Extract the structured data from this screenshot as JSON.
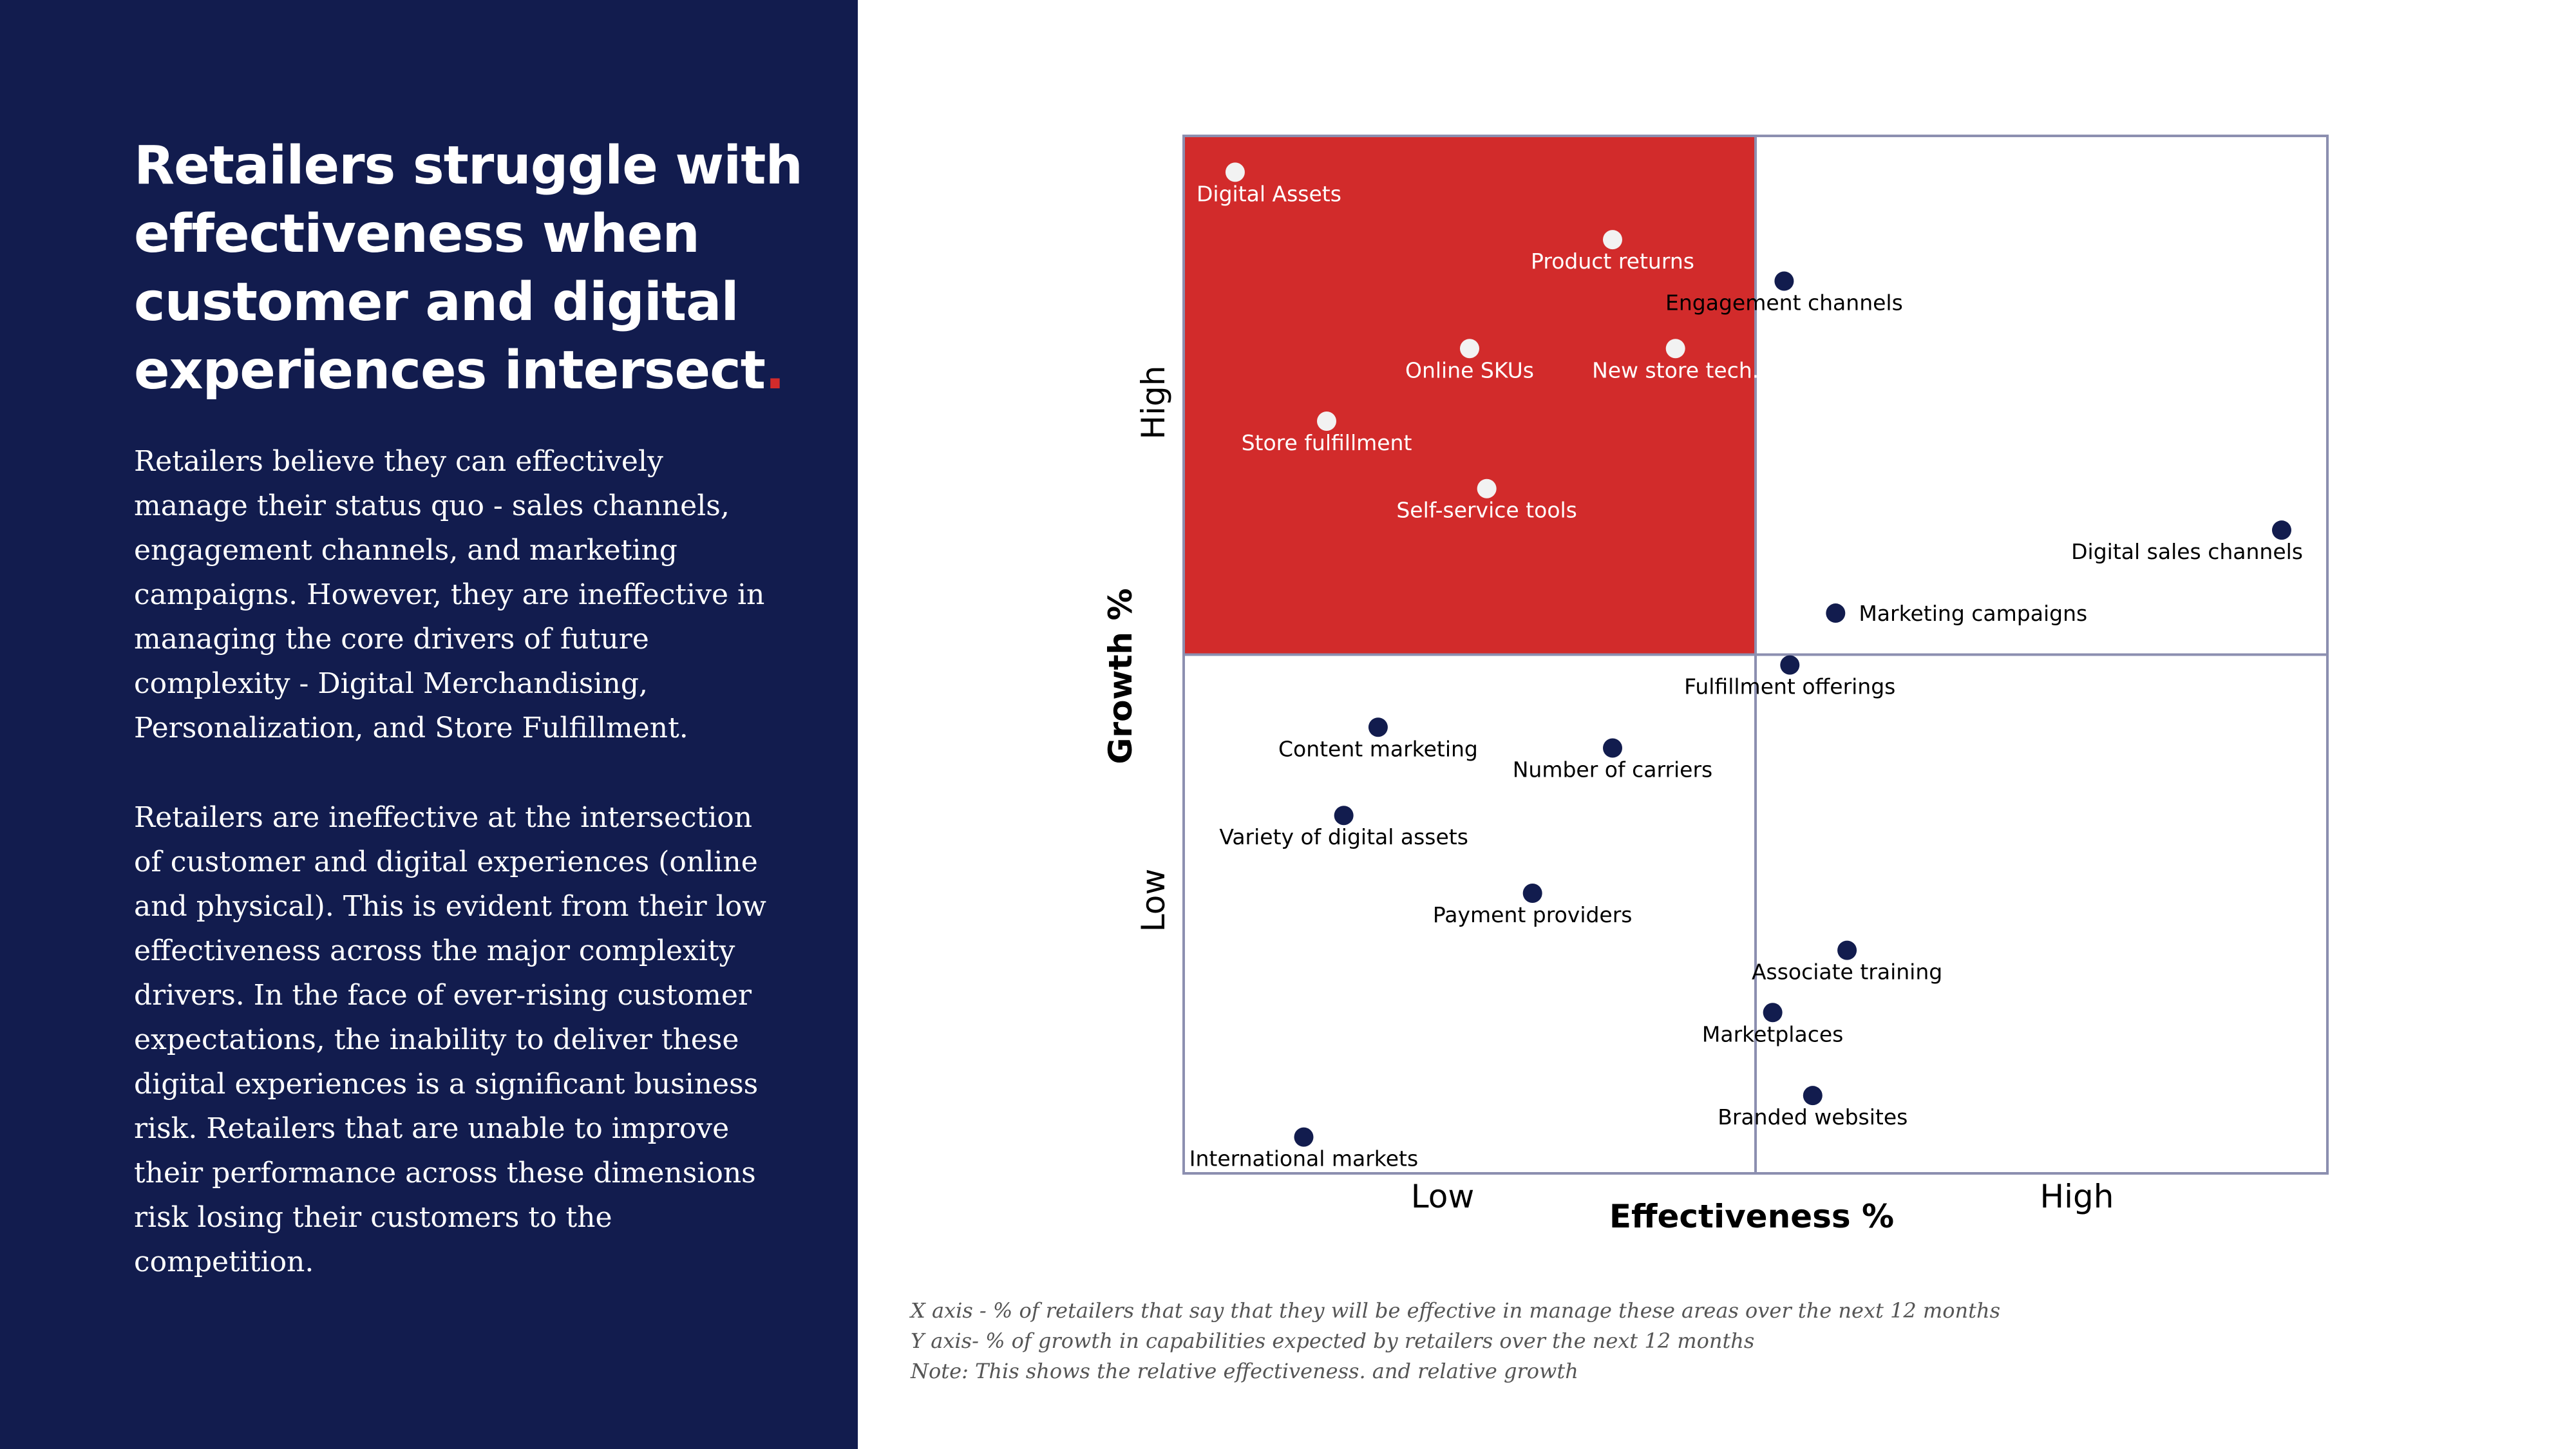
{
  "headline": {
    "text": "Retailers struggle with effectiveness when customer and digital experiences intersect",
    "period": "."
  },
  "body": {
    "paragraph1": "Retailers believe they can effectively manage their status quo - sales channels, engagement channels, and marketing campaigns. However, they are ineffective in managing the core drivers of future complexity - Digital Merchandising, Personalization, and Store Fulfillment.",
    "paragraph2": "Retailers are ineffective at the intersection of customer and digital experiences (online and physical). This is evident from their low effectiveness across the major complexity drivers. In the face of ever-rising customer expectations, the inability to deliver these digital experiences is a significant business risk. Retailers that are unable to improve their performance across these dimensions risk losing their customers to the competition."
  },
  "chart_data": {
    "type": "scatter",
    "title": "",
    "xlabel": "Effectiveness %",
    "ylabel": "Growth %",
    "x_tick_labels": [
      "Low",
      "High"
    ],
    "y_tick_labels": [
      "Low",
      "High"
    ],
    "xlim": [
      0,
      100
    ],
    "ylim": [
      0,
      100
    ],
    "highlight_quadrant": "top-left",
    "colors": {
      "highlight": "#d22b2b",
      "point": "#121c4e",
      "point_on_highlight": "#f2f2f2",
      "frame": "#8c8fb0"
    },
    "points": [
      {
        "label": "Digital Assets",
        "x": 4.5,
        "y": 96.5
      },
      {
        "label": "Product returns",
        "x": 37.5,
        "y": 90
      },
      {
        "label": "Online SKUs",
        "x": 25,
        "y": 79.5
      },
      {
        "label": "New store tech.",
        "x": 43,
        "y": 79.5
      },
      {
        "label": "Store fulfillment",
        "x": 12.5,
        "y": 72.5
      },
      {
        "label": "Self-service tools",
        "x": 26.5,
        "y": 66
      },
      {
        "label": "Engagement channels",
        "x": 52.5,
        "y": 86
      },
      {
        "label": "Digital sales channels",
        "x": 96,
        "y": 62
      },
      {
        "label": "Marketing campaigns",
        "x": 57,
        "y": 54
      },
      {
        "label": "Fulfillment offerings",
        "x": 53,
        "y": 49
      },
      {
        "label": "Content marketing",
        "x": 17,
        "y": 43
      },
      {
        "label": "Number of carriers",
        "x": 37.5,
        "y": 41
      },
      {
        "label": "Variety of digital assets",
        "x": 14,
        "y": 34.5
      },
      {
        "label": "Payment providers",
        "x": 30.5,
        "y": 27
      },
      {
        "label": "Associate training",
        "x": 58,
        "y": 21.5
      },
      {
        "label": "Marketplaces",
        "x": 51.5,
        "y": 15.5
      },
      {
        "label": "Branded websites",
        "x": 55,
        "y": 7.5
      },
      {
        "label": "International markets",
        "x": 10.5,
        "y": 3.5
      }
    ]
  },
  "notes": {
    "line1": "X axis - % of retailers that say that they will be effective in manage these areas over the next 12 months",
    "line2": "Y axis- % of growth in capabilities expected by retailers over the next 12 months",
    "line3": "Note: This shows the relative effectiveness. and relative growth"
  }
}
